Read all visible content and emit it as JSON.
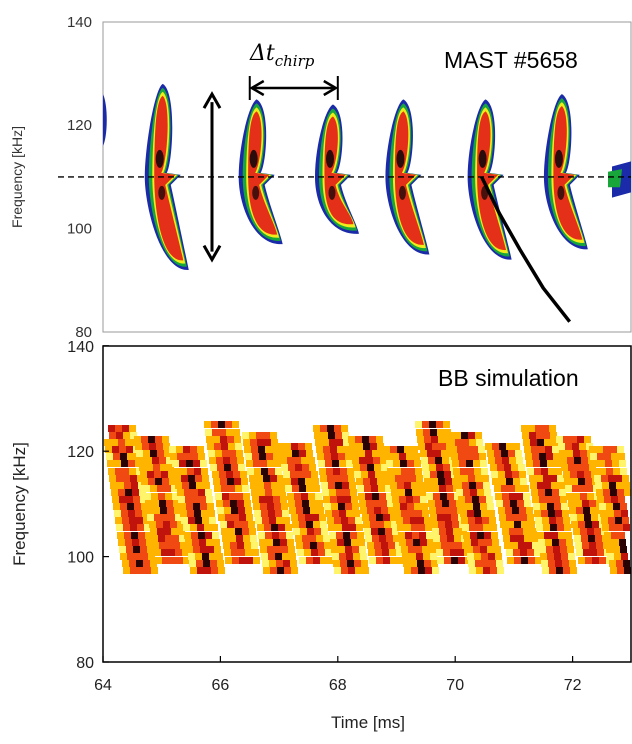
{
  "chart_data": [
    {
      "type": "heatmap",
      "panel": "top",
      "ylabel": "Frequency [kHz]",
      "ylim": [
        80,
        140
      ],
      "xlim": [
        64,
        73
      ],
      "yticks": [
        "80",
        "100",
        "120",
        "140"
      ],
      "annotation": "MAST #5658",
      "delta_symbol": "Δt",
      "delta_subscript": "chirp",
      "reference_line_frequency": 110,
      "colorscale": [
        "#1a2aa8",
        "#18a63a",
        "#f2ea1a",
        "#e43018",
        "#2a0c0c"
      ],
      "bursts": [
        {
          "t": 64.95,
          "f_top": 128,
          "f_bottom": 92
        },
        {
          "t": 66.55,
          "f_top": 125,
          "f_bottom": 97
        },
        {
          "t": 67.85,
          "f_top": 124,
          "f_bottom": 99
        },
        {
          "t": 69.05,
          "f_top": 125,
          "f_bottom": 95
        },
        {
          "t": 70.45,
          "f_top": 125,
          "f_bottom": 94
        },
        {
          "t": 71.75,
          "f_top": 126,
          "f_bottom": 96
        }
      ],
      "chirp_period_ms": [
        66.5,
        68.0
      ],
      "chirp_span_khz": [
        94,
        126
      ],
      "chirp_curve": [
        [
          70.45,
          110
        ],
        [
          70.75,
          103
        ],
        [
          71.1,
          96
        ],
        [
          71.5,
          88.5
        ],
        [
          71.95,
          82
        ]
      ]
    },
    {
      "type": "heatmap",
      "panel": "bottom",
      "xlabel": "Time [ms]",
      "ylabel": "Frequency [kHz]",
      "ylim": [
        80,
        140
      ],
      "xlim": [
        64,
        73
      ],
      "xticks": [
        "64",
        "66",
        "68",
        "70",
        "72"
      ],
      "yticks": [
        "80",
        "100",
        "120",
        "140"
      ],
      "annotation": "BB simulation",
      "colorscale": [
        "#ffffff",
        "#fff46a",
        "#ffb400",
        "#f04a12",
        "#c0130c",
        "#2a0404"
      ],
      "burst_times_ms": [
        64.3,
        64.85,
        65.45,
        66.05,
        66.7,
        67.3,
        67.9,
        68.5,
        69.1,
        69.65,
        70.2,
        70.85,
        71.45,
        72.05,
        72.6
      ]
    }
  ]
}
